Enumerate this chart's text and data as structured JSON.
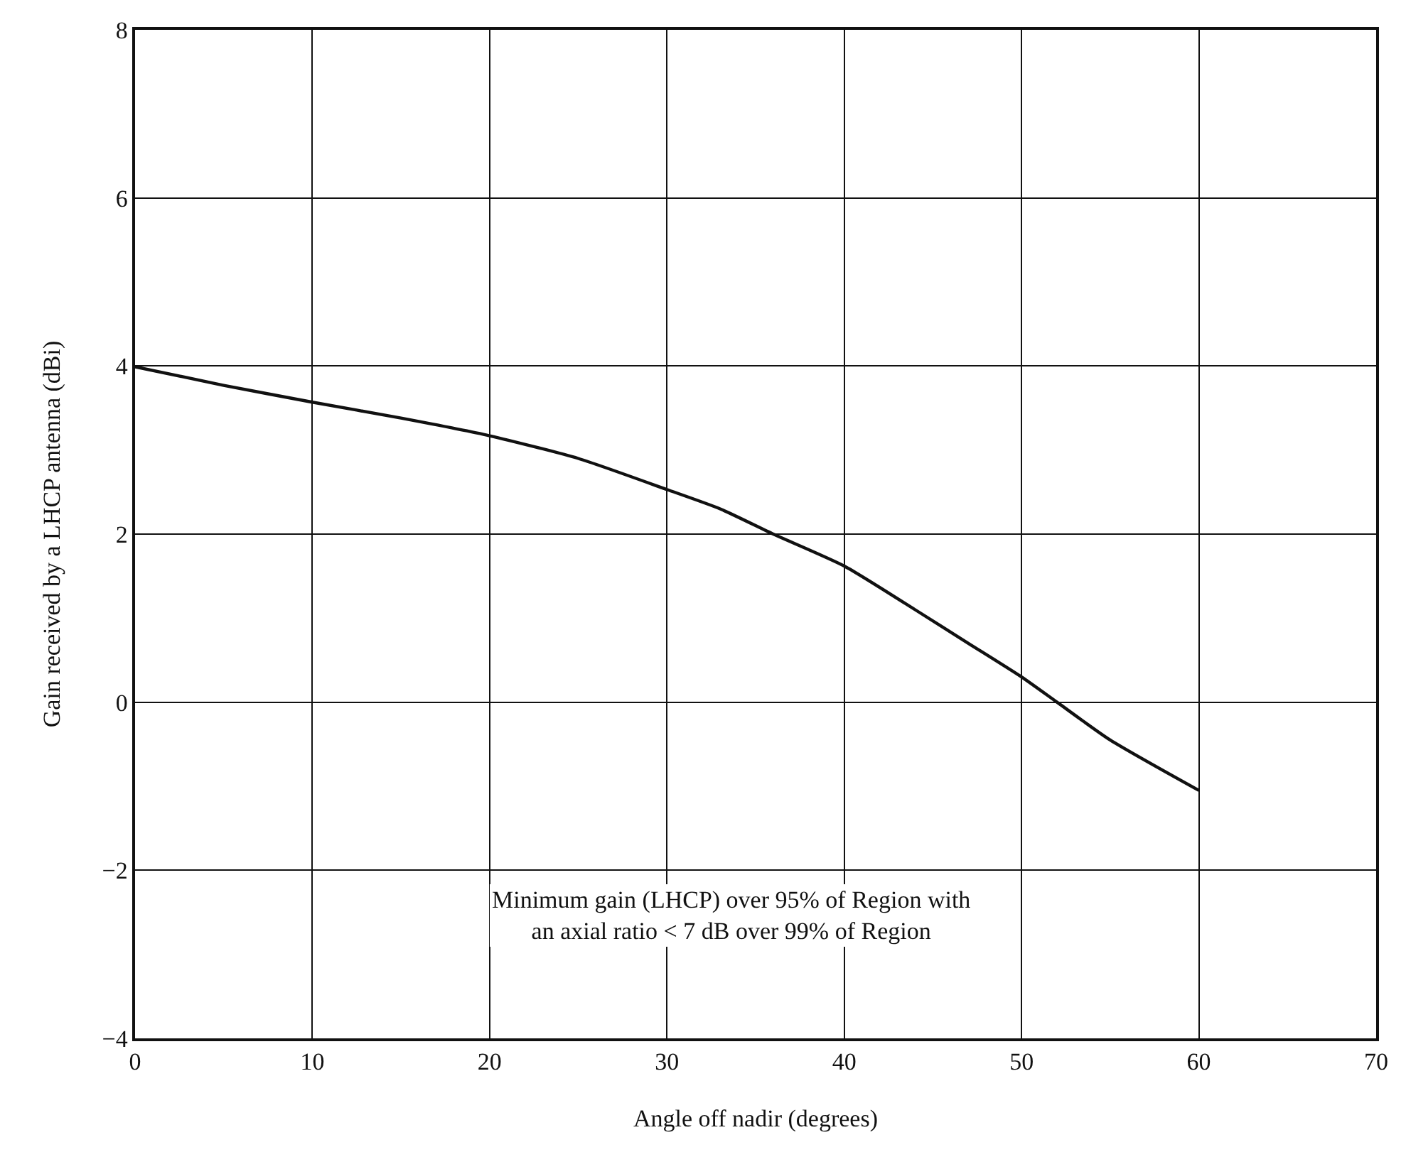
{
  "chart_data": {
    "type": "line",
    "xlabel": "Angle off nadir (degrees)",
    "ylabel": "Gain received by a LHCP antenna (dBi)",
    "x": [
      0,
      5,
      10,
      15,
      20,
      25,
      30,
      33,
      36,
      40,
      44,
      47,
      50,
      52,
      55,
      60
    ],
    "series": [
      {
        "color": "#111111",
        "values": [
          3.99,
          3.77,
          3.57,
          3.38,
          3.17,
          2.9,
          2.53,
          2.3,
          2.0,
          1.62,
          1.1,
          0.7,
          0.3,
          0.0,
          -0.45,
          -1.05
        ]
      }
    ],
    "xlim": [
      0,
      70
    ],
    "xticks": [
      0,
      10,
      20,
      30,
      40,
      50,
      60,
      70
    ],
    "ylim": [
      -4,
      8
    ],
    "yticks": [
      -4,
      -2,
      0,
      2,
      4,
      6,
      8
    ],
    "grid": true,
    "marker": "none",
    "line_style": "solid",
    "annotations": [
      "Minimum gain (LHCP) over 95% of Region with\nan axial ratio < 7 dB over 99% of Region"
    ]
  }
}
